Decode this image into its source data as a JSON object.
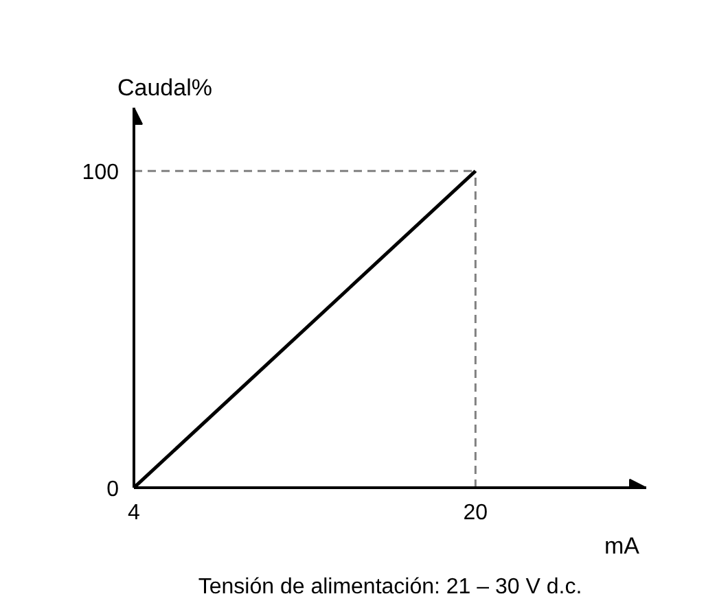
{
  "chart_data": {
    "type": "line",
    "x": [
      4,
      20
    ],
    "series": [
      {
        "color": "#000000",
        "values": [
          0,
          100
        ]
      }
    ],
    "xlabel": "mA",
    "ylabel": "Caudal%",
    "annotations": [
      "Tensión de alimentación: 21 – 30 V d.c."
    ],
    "xlim": [
      4,
      28
    ],
    "ylim": [
      0,
      120
    ],
    "xticks": [
      4,
      20
    ],
    "yticks": [
      0,
      100
    ],
    "ref_lines": [
      {
        "axis": "y",
        "value": 100,
        "color": "#808080",
        "line_style": "dashed"
      },
      {
        "axis": "x",
        "value": 20,
        "color": "#808080",
        "line_style": "dashed"
      }
    ],
    "grid": false
  }
}
